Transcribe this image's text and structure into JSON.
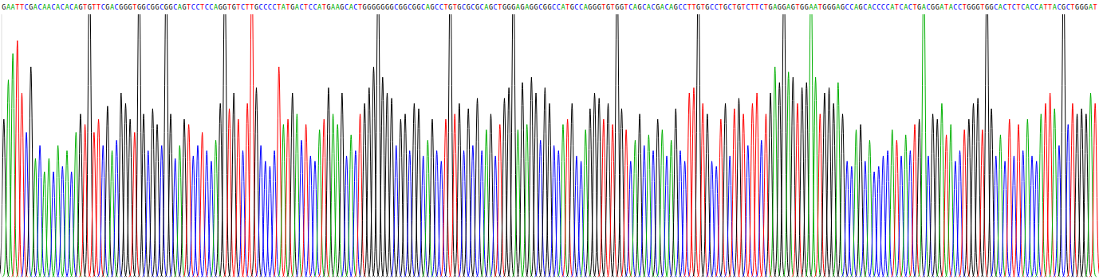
{
  "chart_data": {
    "type": "chromatogram",
    "sequence": "GAATTCGACAACACACAGTGTTCGACGGGTGGCGGCGGCAGTCCTCCAGGTGTCTTGCCCCTATGACTCCATGAAGCACTGGGGGGGCGGCGGCAGCCTGTGCGCGCAGCTGGGAGAGGCGGCCATGCCAGGGTGTGGTCAGCACGACAGCCTTGTGCCTGCTGTCTTCTGAGGAGTGGAATGGGAGCCAGCACCCCATCACTGACGGATACCTGGGTGGCACTCTCACCATTACGCTGGGAT",
    "series": [
      {
        "name": "A",
        "color": "#00b000"
      },
      {
        "name": "C",
        "color": "#0000ff"
      },
      {
        "name": "G",
        "color": "#000000"
      },
      {
        "name": "T",
        "color": "#ff0000"
      }
    ],
    "peaks": [
      60,
      75,
      85,
      90,
      70,
      55,
      80,
      45,
      50,
      40,
      45,
      40,
      50,
      42,
      48,
      40,
      55,
      62,
      58,
      120,
      55,
      60,
      50,
      65,
      48,
      52,
      70,
      66,
      60,
      55,
      120,
      62,
      48,
      64,
      58,
      50,
      120,
      62,
      45,
      50,
      60,
      58,
      46,
      50,
      55,
      48,
      44,
      52,
      66,
      120,
      64,
      70,
      60,
      48,
      66,
      120,
      72,
      50,
      44,
      42,
      48,
      80,
      58,
      60,
      70,
      62,
      52,
      58,
      46,
      44,
      56,
      60,
      72,
      62,
      58,
      70,
      46,
      54,
      48,
      62,
      66,
      72,
      80,
      120,
      76,
      70,
      68,
      50,
      60,
      62,
      48,
      66,
      64,
      46,
      52,
      60,
      48,
      44,
      60,
      120,
      62,
      66,
      48,
      64,
      50,
      68,
      48,
      56,
      62,
      46,
      58,
      68,
      72,
      120,
      56,
      74,
      58,
      76,
      70,
      52,
      72,
      66,
      50,
      48,
      58,
      60,
      66,
      46,
      44,
      56,
      64,
      70,
      68,
      60,
      66,
      58,
      120,
      64,
      56,
      44,
      52,
      62,
      50,
      54,
      48,
      60,
      56,
      46,
      52,
      64,
      48,
      44,
      70,
      72,
      120,
      66,
      62,
      44,
      42,
      60,
      66,
      46,
      64,
      68,
      62,
      50,
      66,
      70,
      52,
      62,
      70,
      80,
      74,
      120,
      78,
      76,
      66,
      72,
      74,
      120,
      76,
      62,
      70,
      72,
      66,
      74,
      62,
      44,
      42,
      56,
      58,
      44,
      52,
      40,
      42,
      46,
      48,
      56,
      52,
      46,
      54,
      48,
      58,
      60,
      120,
      46,
      62,
      60,
      66,
      54,
      58,
      44,
      48,
      56,
      60,
      66,
      68,
      56,
      120,
      64,
      46,
      54,
      44,
      60,
      46,
      58,
      48,
      60,
      46,
      44,
      62,
      66,
      70,
      64,
      50,
      120,
      58,
      66,
      62,
      64,
      62,
      70,
      66
    ],
    "ylim": [
      0,
      100
    ],
    "tick_labels": false,
    "grid": false
  }
}
